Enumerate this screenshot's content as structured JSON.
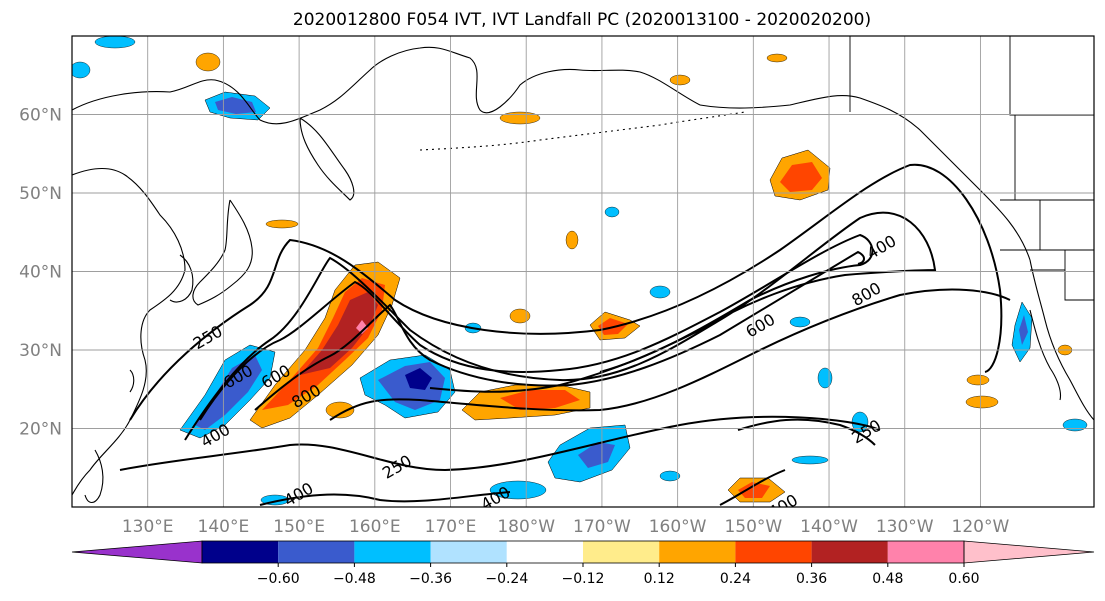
{
  "title": "2020012800 F054 IVT, IVT Landfall PC (2020013100 - 2020020200)",
  "map": {
    "lat_labels": [
      "60°N",
      "50°N",
      "40°N",
      "30°N",
      "20°N"
    ],
    "lon_labels": [
      "130°E",
      "140°E",
      "150°E",
      "160°E",
      "170°E",
      "180°W",
      "170°W",
      "160°W",
      "150°W",
      "140°W",
      "130°W",
      "120°W"
    ],
    "lat_range": [
      10,
      70
    ],
    "lon_range": [
      120,
      255
    ],
    "grid": true
  },
  "contours": {
    "levels": [
      250,
      400,
      600,
      800
    ],
    "labels": [
      {
        "text": "250",
        "lon": 138,
        "lat": 31.5
      },
      {
        "text": "600",
        "lon": 142,
        "lat": 26.5
      },
      {
        "text": "600",
        "lon": 147,
        "lat": 26.5
      },
      {
        "text": "800",
        "lon": 151,
        "lat": 24
      },
      {
        "text": "400",
        "lon": 139,
        "lat": 19
      },
      {
        "text": "250",
        "lon": 163,
        "lat": 15
      },
      {
        "text": "400",
        "lon": 150,
        "lat": 11.5
      },
      {
        "text": "400",
        "lon": 176,
        "lat": 11
      },
      {
        "text": "600",
        "lon": 211,
        "lat": 33
      },
      {
        "text": "800",
        "lon": 225,
        "lat": 37
      },
      {
        "text": "400",
        "lon": 227,
        "lat": 43
      },
      {
        "text": "250",
        "lon": 225,
        "lat": 19.5
      },
      {
        "text": "400",
        "lon": 214,
        "lat": 10
      }
    ]
  },
  "colorbar": {
    "ticks": [
      "−0.60",
      "−0.48",
      "−0.36",
      "−0.24",
      "−0.12",
      "0.12",
      "0.24",
      "0.36",
      "0.48",
      "0.60"
    ],
    "colors": [
      "#9932cc",
      "#00008b",
      "#3a5bcd",
      "#00bfff",
      "#b0e2ff",
      "#ffffff",
      "#ffec8b",
      "#ffa500",
      "#ff4500",
      "#b22222",
      "#ff82ab",
      "#ffc0cb"
    ]
  }
}
